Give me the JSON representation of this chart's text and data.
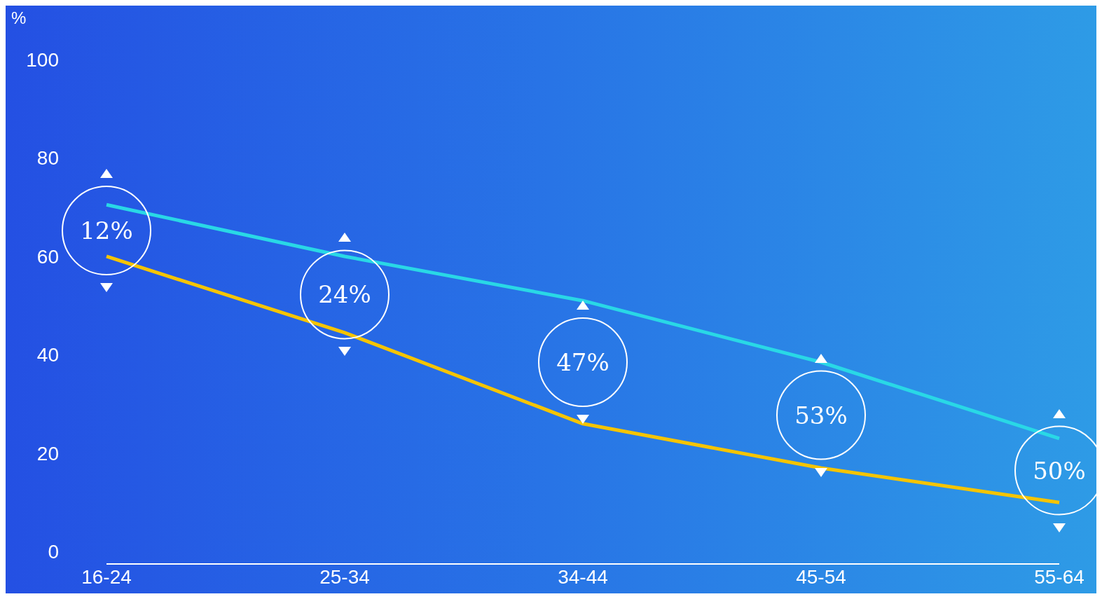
{
  "chart_data": {
    "type": "line",
    "ylabel": "%",
    "categories": [
      "16-24",
      "25-34",
      "34-44",
      "45-54",
      "55-64"
    ],
    "series": [
      {
        "color": "#29d8e6",
        "values": [
          70.5,
          60,
          51,
          38.5,
          23
        ]
      },
      {
        "color": "#f5c400",
        "values": [
          60,
          44.5,
          26,
          17,
          10
        ]
      }
    ],
    "ylim": [
      -2.5,
      100
    ],
    "yticks": [
      0,
      20,
      40,
      60,
      80,
      100
    ],
    "marker": "none",
    "line_style": "solid",
    "annotations": [
      "12%",
      "24%",
      "47%",
      "53%",
      "50%"
    ]
  }
}
